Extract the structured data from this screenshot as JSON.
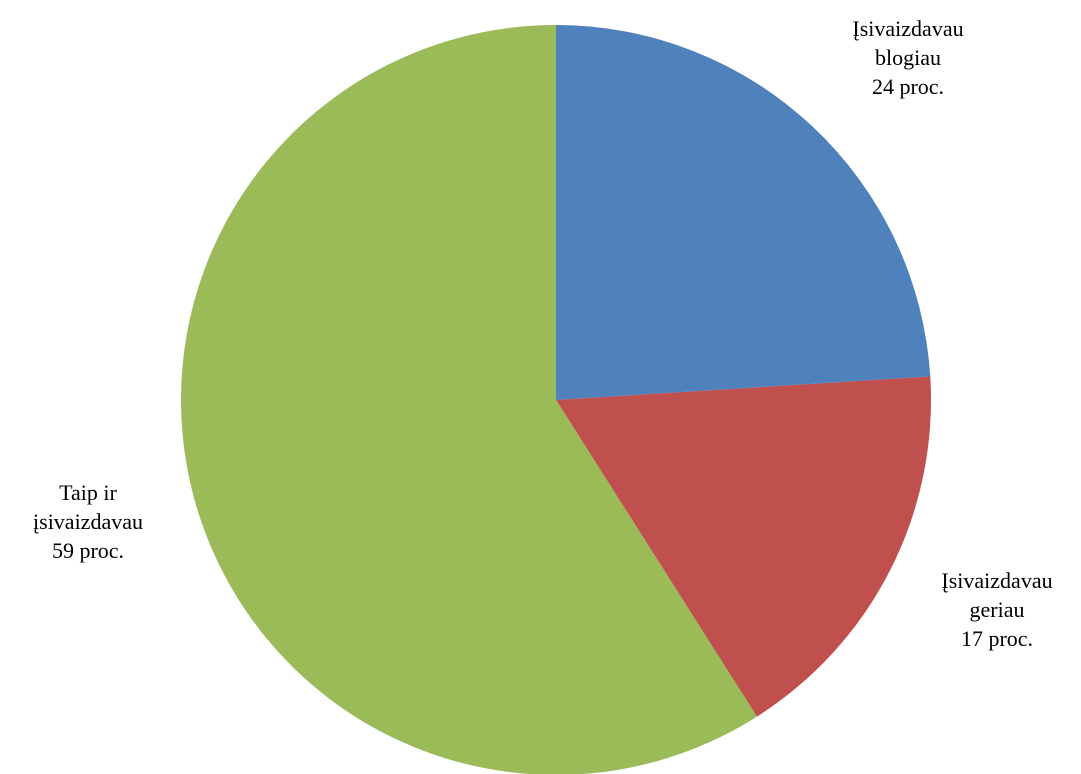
{
  "chart_data": {
    "type": "pie",
    "title": "",
    "slices": [
      {
        "label": [
          "Įsivaizdavau",
          "blogiau",
          "24 proc."
        ],
        "name": "Įsivaizdavau blogiau",
        "value": 24,
        "color": "#4F81BD"
      },
      {
        "label": [
          "Įsivaizdavau",
          "geriau",
          "17 proc."
        ],
        "name": "Įsivaizdavau geriau",
        "value": 17,
        "color": "#C0504D"
      },
      {
        "label": [
          "Taip ir",
          "įsivaizdavau",
          "59 proc."
        ],
        "name": "Taip ir įsivaizdavau",
        "value": 59,
        "color": "#9BBB59"
      }
    ],
    "start": "12 o'clock",
    "direction": "clockwise",
    "legend": "none"
  }
}
